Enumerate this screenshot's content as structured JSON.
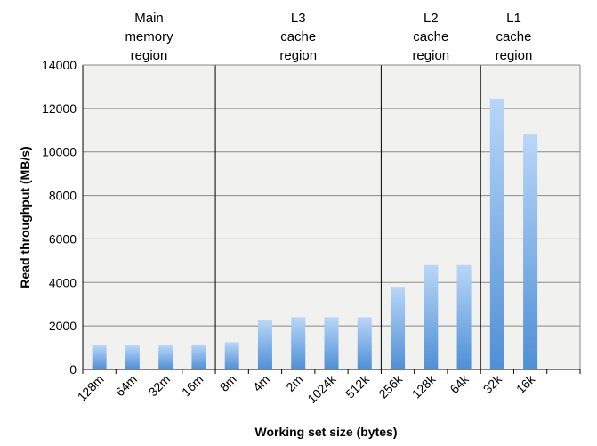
{
  "chart_data": {
    "type": "bar",
    "title": "",
    "xlabel": "Working set size (bytes)",
    "ylabel": "Read throughput (MB/s)",
    "ylim": [
      0,
      14000
    ],
    "yticks": [
      0,
      2000,
      4000,
      6000,
      8000,
      10000,
      12000,
      14000
    ],
    "ytick_labels": [
      "0",
      "2000",
      "4000",
      "6000",
      "8000",
      "10000",
      "12000",
      "14000"
    ],
    "grid": true,
    "legend": "none",
    "categories": [
      "128m",
      "64m",
      "32m",
      "16m",
      "8m",
      "4m",
      "2m",
      "1024k",
      "512k",
      "256k",
      "128k",
      "64k",
      "32k",
      "16k"
    ],
    "values": [
      1100,
      1100,
      1100,
      1150,
      1250,
      2250,
      2400,
      2400,
      2400,
      3800,
      4800,
      4800,
      12450,
      10800
    ],
    "regions": [
      {
        "lines": [
          "Main",
          "memory",
          "region"
        ]
      },
      {
        "lines": [
          "L3",
          "cache",
          "region"
        ]
      },
      {
        "lines": [
          "L2",
          "cache",
          "region"
        ]
      },
      {
        "lines": [
          "L1",
          "cache",
          "region"
        ]
      }
    ],
    "colors": {
      "plot_background": "#f1f1ef",
      "gridline": "#8a8a8a",
      "bar_top": "#b9d7f8",
      "bar_bottom": "#4f8fd6",
      "region_divider": "#000000"
    }
  }
}
